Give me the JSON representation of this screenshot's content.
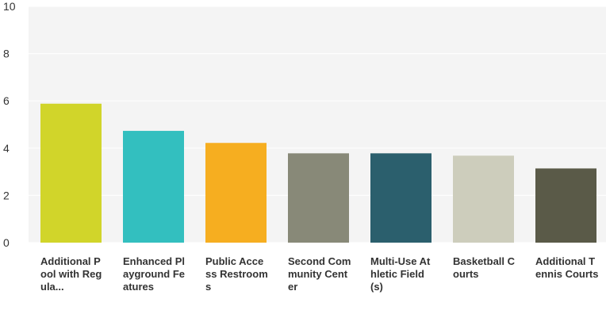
{
  "chart_data": {
    "type": "bar",
    "categories": [
      "Additional Pool with Regula...",
      "Enhanced Playground Features",
      "Public Access Restrooms",
      "Second Community Center",
      "Multi-Use Athletic Field(s)",
      "Basketball Courts",
      "Additional Tennis Courts"
    ],
    "values": [
      5.88,
      4.73,
      4.22,
      3.78,
      3.78,
      3.68,
      3.14
    ],
    "ylim": [
      0,
      10
    ],
    "yticks": [
      "0",
      "2",
      "4",
      "6",
      "8",
      "10"
    ],
    "colors": [
      "#d1d52a",
      "#33bfbf",
      "#f6ae20",
      "#888978",
      "#2b5f6d",
      "#cdcdbc",
      "#5a5a48"
    ],
    "grid": true,
    "legend": "none",
    "title": "",
    "xlabel": "",
    "ylabel": ""
  }
}
